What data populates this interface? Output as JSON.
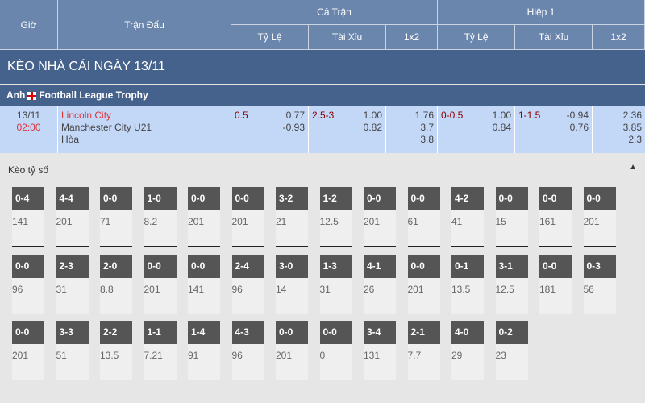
{
  "header": {
    "gio": "Giờ",
    "tran_dau": "Trận Đấu",
    "ca_tran": "Cả Trận",
    "hiep1": "Hiệp 1",
    "ty_le": "Tỷ Lệ",
    "tai_xiu": "Tài Xỉu",
    "x12": "1x2"
  },
  "title": "KÈO NHÀ CÁI NGÀY 13/11",
  "league": {
    "country": "Anh",
    "name": "Football League Trophy"
  },
  "match": {
    "date": "13/11",
    "time": "02:00",
    "home": "Lincoln City",
    "away": "Manchester City U21",
    "draw": "Hòa",
    "ft": {
      "hdp": "0.5",
      "hdp_home": "0.77",
      "hdp_away": "-0.93",
      "ou": "2.5-3",
      "ou_over": "1.00",
      "ou_under": "0.82",
      "x1": "1.76",
      "x2": "3.7",
      "x3": "3.8"
    },
    "h1": {
      "hdp": "0-0.5",
      "hdp_home": "1.00",
      "hdp_away": "0.84",
      "ou": "1-1.5",
      "ou_over": "-0.94",
      "ou_under": "0.76",
      "x1": "2.36",
      "x2": "3.85",
      "x3": "2.3"
    }
  },
  "keo_ty_so": {
    "label": "Kèo tỷ số",
    "rows": [
      [
        [
          "0-4",
          "141"
        ],
        [
          "4-4",
          "201"
        ],
        [
          "0-0",
          "71"
        ],
        [
          "1-0",
          "8.2"
        ],
        [
          "0-0",
          "201"
        ],
        [
          "0-0",
          "201"
        ],
        [
          "3-2",
          "21"
        ],
        [
          "1-2",
          "12.5"
        ],
        [
          "0-0",
          "201"
        ],
        [
          "0-0",
          "61"
        ],
        [
          "4-2",
          "41"
        ],
        [
          "0-0",
          "15"
        ],
        [
          "0-0",
          "161"
        ],
        [
          "0-0",
          "201"
        ]
      ],
      [
        [
          "0-0",
          "96"
        ],
        [
          "2-3",
          "31"
        ],
        [
          "2-0",
          "8.8"
        ],
        [
          "0-0",
          "201"
        ],
        [
          "0-0",
          "141"
        ],
        [
          "2-4",
          "96"
        ],
        [
          "3-0",
          "14"
        ],
        [
          "1-3",
          "31"
        ],
        [
          "4-1",
          "26"
        ],
        [
          "0-0",
          "201"
        ],
        [
          "0-1",
          "13.5"
        ],
        [
          "3-1",
          "12.5"
        ],
        [
          "0-0",
          "181"
        ],
        [
          "0-3",
          "56"
        ]
      ],
      [
        [
          "0-0",
          "201"
        ],
        [
          "3-3",
          "51"
        ],
        [
          "2-2",
          "13.5"
        ],
        [
          "1-1",
          "7.21"
        ],
        [
          "1-4",
          "91"
        ],
        [
          "4-3",
          "96"
        ],
        [
          "0-0",
          "201"
        ],
        [
          "0-0",
          "0"
        ],
        [
          "3-4",
          "131"
        ],
        [
          "2-1",
          "7.7"
        ],
        [
          "4-0",
          "29"
        ],
        [
          "0-2",
          "23"
        ]
      ]
    ]
  }
}
